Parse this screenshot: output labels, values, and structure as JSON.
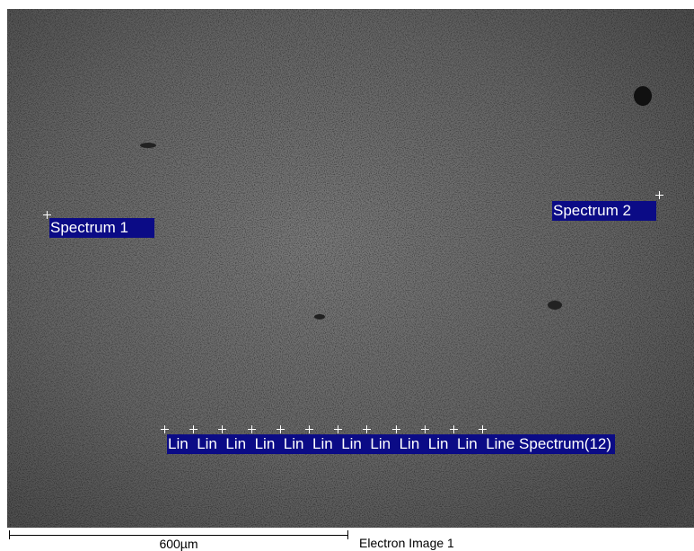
{
  "labels": [
    "Spectrum 1",
    "Spectrum 2"
  ],
  "line_spectrum": [
    "Lin",
    "Lin",
    "Lin",
    "Lin",
    "Lin",
    "Lin",
    "Lin",
    "Lin",
    "Lin",
    "Lin",
    "Lin",
    "Line Spectrum(12)"
  ],
  "scale_bar": "600µm",
  "caption": "Electron Image 1"
}
